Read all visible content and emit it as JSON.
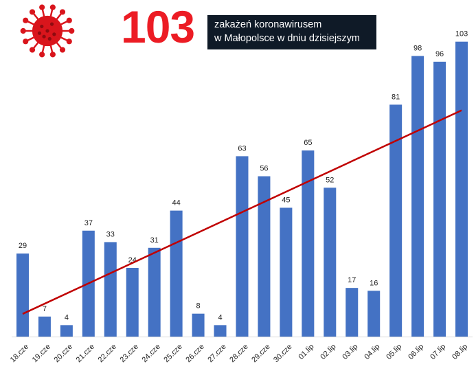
{
  "header": {
    "number": "103",
    "caption_line1": "zakażeń koronawirusem",
    "caption_line2": "w Małopolsce w dniu dzisiejszym",
    "icon": "coronavirus-icon"
  },
  "colors": {
    "bar": "#4472c4",
    "trendline": "#c00000",
    "number": "#ec1c24",
    "caption_bg": "#0f1a27",
    "virus": "#d9151c"
  },
  "chart_data": {
    "type": "bar",
    "categories": [
      "18.cze",
      "19.cze",
      "20.cze",
      "21.cze",
      "22.cze",
      "23.cze",
      "24.cze",
      "25.cze",
      "26.cze",
      "27.cze",
      "28.cze",
      "29.cze",
      "30.cze",
      "01.lip",
      "02.lip",
      "03.lip",
      "04.lip",
      "05.lip",
      "06.lip",
      "07.lip",
      "08.lip"
    ],
    "values": [
      29,
      7,
      4,
      37,
      33,
      24,
      31,
      44,
      8,
      4,
      63,
      56,
      45,
      65,
      52,
      17,
      16,
      81,
      98,
      96,
      103
    ],
    "data_labels": [
      "29",
      "7",
      "4",
      "37",
      "33",
      "24",
      "31",
      "44",
      "8",
      "4",
      "63",
      "56",
      "45",
      "65",
      "52",
      "17",
      "16",
      "81",
      "98",
      "96",
      "103"
    ],
    "trendline": "linear",
    "ylim": [
      0,
      107
    ],
    "grid": false,
    "legend": "none",
    "title": "",
    "xlabel": "",
    "ylabel": ""
  }
}
